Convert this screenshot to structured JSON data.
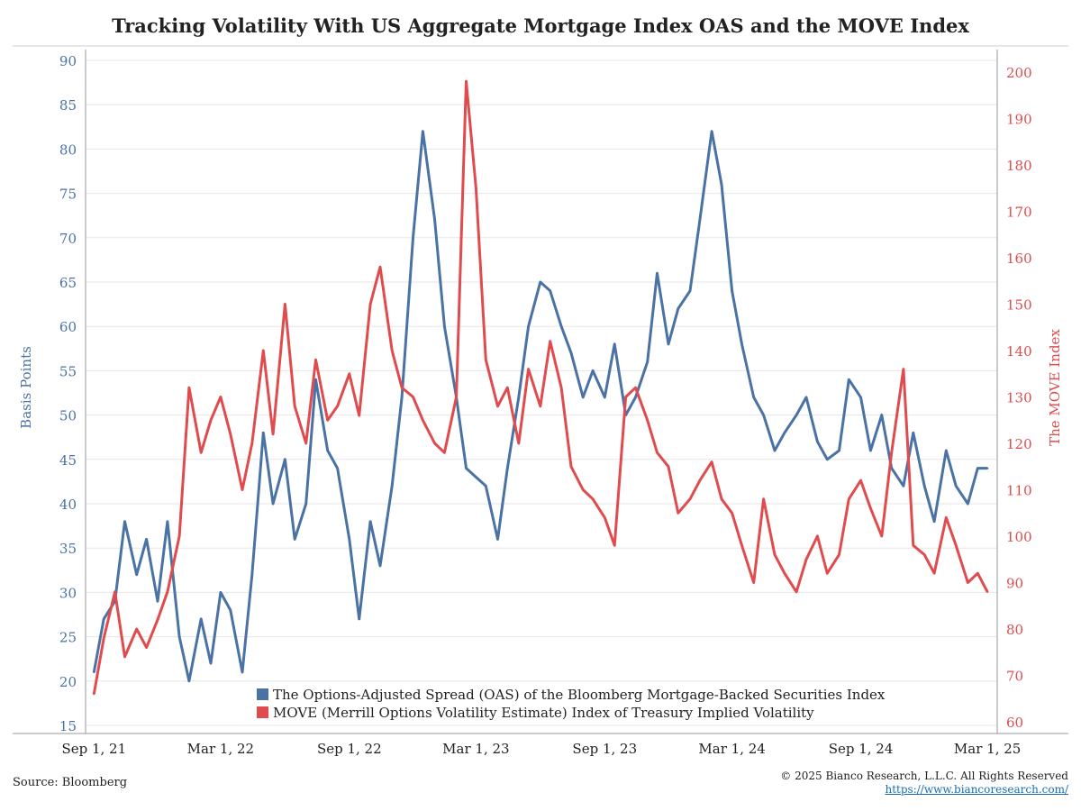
{
  "title": "Tracking Volatility With US Aggregate Mortgage Index OAS and the MOVE Index",
  "source": "Source: Bloomberg",
  "copyright": "© 2025 Bianco Research, L.L.C. All Rights Reserved",
  "website": "https://www.biancoresearch.com/",
  "colors": {
    "oas": "#4a72a5",
    "move": "#e04b4e",
    "grid": "#e6e6e6",
    "axis": "#999999"
  },
  "chart_data": {
    "type": "line",
    "title": "Tracking Volatility With US Aggregate Mortgage Index OAS and the MOVE Index",
    "xlabel": "",
    "ylabel": "Basis Points",
    "y2label": "The MOVE Index",
    "ylim": [
      15,
      90
    ],
    "y2lim": [
      60,
      200
    ],
    "yticks": [
      15,
      20,
      25,
      30,
      35,
      40,
      45,
      50,
      55,
      60,
      65,
      70,
      75,
      80,
      85,
      90
    ],
    "y2ticks": [
      60,
      70,
      80,
      90,
      100,
      110,
      120,
      130,
      140,
      150,
      160,
      170,
      180,
      190,
      200
    ],
    "xlim": [
      "2021-08-20",
      "2025-03-15"
    ],
    "xticks": [
      {
        "date": "2021-09-01",
        "label": "Sep 1, 21"
      },
      {
        "date": "2022-03-01",
        "label": "Mar 1, 22"
      },
      {
        "date": "2022-09-01",
        "label": "Sep 1, 22"
      },
      {
        "date": "2023-03-01",
        "label": "Mar 1, 23"
      },
      {
        "date": "2023-09-01",
        "label": "Sep 1, 23"
      },
      {
        "date": "2024-03-01",
        "label": "Mar 1, 24"
      },
      {
        "date": "2024-09-01",
        "label": "Sep 1, 24"
      },
      {
        "date": "2025-03-01",
        "label": "Mar 1, 25"
      }
    ],
    "grid": true,
    "legend_position": "bottom-center",
    "series": [
      {
        "name": "The Options-Adjusted Spread (OAS) of the Bloomberg Mortgage-Backed Securities Index",
        "axis": "left",
        "x": [
          "2021-09-01",
          "2021-09-15",
          "2021-10-01",
          "2021-10-15",
          "2021-11-01",
          "2021-11-15",
          "2021-12-01",
          "2021-12-15",
          "2022-01-01",
          "2022-01-15",
          "2022-02-01",
          "2022-02-15",
          "2022-03-01",
          "2022-03-15",
          "2022-04-01",
          "2022-04-15",
          "2022-05-01",
          "2022-05-15",
          "2022-06-01",
          "2022-06-15",
          "2022-07-01",
          "2022-07-15",
          "2022-08-01",
          "2022-08-15",
          "2022-09-01",
          "2022-09-15",
          "2022-10-01",
          "2022-10-15",
          "2022-11-01",
          "2022-11-15",
          "2022-12-01",
          "2022-12-15",
          "2023-01-01",
          "2023-01-15",
          "2023-02-01",
          "2023-02-15",
          "2023-03-01",
          "2023-03-15",
          "2023-04-01",
          "2023-04-15",
          "2023-05-01",
          "2023-05-15",
          "2023-06-01",
          "2023-06-15",
          "2023-07-01",
          "2023-07-15",
          "2023-08-01",
          "2023-08-15",
          "2023-09-01",
          "2023-09-15",
          "2023-10-01",
          "2023-10-15",
          "2023-11-01",
          "2023-11-15",
          "2023-12-01",
          "2023-12-15",
          "2024-01-01",
          "2024-01-15",
          "2024-02-01",
          "2024-02-15",
          "2024-03-01",
          "2024-03-15",
          "2024-04-01",
          "2024-04-15",
          "2024-05-01",
          "2024-05-15",
          "2024-06-01",
          "2024-06-15",
          "2024-07-01",
          "2024-07-15",
          "2024-08-01",
          "2024-08-15",
          "2024-09-01",
          "2024-09-15",
          "2024-10-01",
          "2024-10-15",
          "2024-11-01",
          "2024-11-15",
          "2024-12-01",
          "2024-12-15",
          "2025-01-01",
          "2025-01-15",
          "2025-02-01",
          "2025-02-15",
          "2025-03-01"
        ],
        "values": [
          21,
          27,
          29,
          38,
          32,
          36,
          29,
          38,
          25,
          20,
          27,
          22,
          30,
          28,
          21,
          32,
          48,
          40,
          45,
          36,
          40,
          54,
          46,
          44,
          36,
          27,
          38,
          33,
          42,
          52,
          70,
          82,
          72,
          60,
          52,
          44,
          43,
          42,
          36,
          44,
          52,
          60,
          65,
          64,
          60,
          57,
          52,
          55,
          52,
          58,
          50,
          52,
          56,
          66,
          58,
          62,
          64,
          72,
          82,
          76,
          64,
          58,
          52,
          50,
          46,
          48,
          50,
          52,
          47,
          45,
          46,
          54,
          52,
          46,
          50,
          44,
          42,
          48,
          42,
          38,
          46,
          42,
          40,
          44,
          44
        ]
      },
      {
        "name": "MOVE (Merrill Options Volatility Estimate) Index of Treasury Implied Volatility",
        "axis": "right",
        "x": [
          "2021-09-01",
          "2021-09-15",
          "2021-10-01",
          "2021-10-15",
          "2021-11-01",
          "2021-11-15",
          "2021-12-01",
          "2021-12-15",
          "2022-01-01",
          "2022-01-15",
          "2022-02-01",
          "2022-02-15",
          "2022-03-01",
          "2022-03-15",
          "2022-04-01",
          "2022-04-15",
          "2022-05-01",
          "2022-05-15",
          "2022-06-01",
          "2022-06-15",
          "2022-07-01",
          "2022-07-15",
          "2022-08-01",
          "2022-08-15",
          "2022-09-01",
          "2022-09-15",
          "2022-10-01",
          "2022-10-15",
          "2022-11-01",
          "2022-11-15",
          "2022-12-01",
          "2022-12-15",
          "2023-01-01",
          "2023-01-15",
          "2023-02-01",
          "2023-02-15",
          "2023-03-01",
          "2023-03-15",
          "2023-04-01",
          "2023-04-15",
          "2023-05-01",
          "2023-05-15",
          "2023-06-01",
          "2023-06-15",
          "2023-07-01",
          "2023-07-15",
          "2023-08-01",
          "2023-08-15",
          "2023-09-01",
          "2023-09-15",
          "2023-10-01",
          "2023-10-15",
          "2023-11-01",
          "2023-11-15",
          "2023-12-01",
          "2023-12-15",
          "2024-01-01",
          "2024-01-15",
          "2024-02-01",
          "2024-02-15",
          "2024-03-01",
          "2024-03-15",
          "2024-04-01",
          "2024-04-15",
          "2024-05-01",
          "2024-05-15",
          "2024-06-01",
          "2024-06-15",
          "2024-07-01",
          "2024-07-15",
          "2024-08-01",
          "2024-08-15",
          "2024-09-01",
          "2024-09-15",
          "2024-10-01",
          "2024-10-15",
          "2024-11-01",
          "2024-11-15",
          "2024-12-01",
          "2024-12-15",
          "2025-01-01",
          "2025-01-15",
          "2025-02-01",
          "2025-02-15",
          "2025-03-01"
        ],
        "values": [
          66,
          78,
          88,
          74,
          80,
          76,
          82,
          88,
          100,
          132,
          118,
          125,
          130,
          122,
          110,
          120,
          140,
          122,
          150,
          128,
          120,
          138,
          125,
          128,
          135,
          126,
          150,
          158,
          140,
          132,
          130,
          125,
          120,
          118,
          130,
          198,
          175,
          138,
          128,
          132,
          120,
          136,
          128,
          142,
          132,
          115,
          110,
          108,
          104,
          98,
          130,
          132,
          125,
          118,
          115,
          105,
          108,
          112,
          116,
          108,
          105,
          98,
          90,
          108,
          96,
          92,
          88,
          95,
          100,
          92,
          96,
          108,
          112,
          106,
          100,
          118,
          136,
          98,
          96,
          92,
          104,
          98,
          90,
          92,
          88
        ]
      }
    ]
  }
}
